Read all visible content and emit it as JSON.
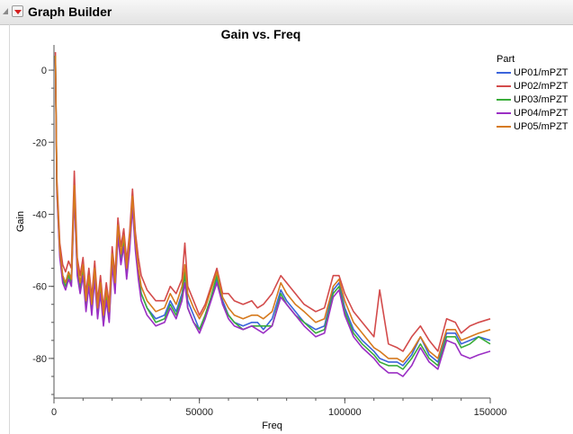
{
  "window": {
    "title": "Graph Builder"
  },
  "chart_data": {
    "type": "line",
    "title": "Gain vs. Freq",
    "xlabel": "Freq",
    "ylabel": "Gain",
    "xlim": [
      0,
      150000
    ],
    "ylim": [
      -91,
      7
    ],
    "x_ticks": [
      0,
      50000,
      100000,
      150000
    ],
    "y_ticks": [
      0,
      -20,
      -40,
      -60,
      -80
    ],
    "legend": {
      "title": "Part",
      "position": "right"
    },
    "grid": false,
    "x": [
      500,
      1000,
      2000,
      3000,
      4000,
      5000,
      6000,
      7000,
      8000,
      9000,
      10000,
      11000,
      12000,
      13000,
      14000,
      15000,
      16000,
      17000,
      18000,
      19000,
      20000,
      21000,
      22000,
      23000,
      24000,
      25000,
      26000,
      27000,
      28000,
      29000,
      30000,
      32000,
      35000,
      38000,
      40000,
      42000,
      44000,
      45000,
      46000,
      48000,
      50000,
      52000,
      54000,
      56000,
      58000,
      60000,
      62000,
      65000,
      68000,
      70000,
      72000,
      75000,
      78000,
      80000,
      83000,
      86000,
      90000,
      93000,
      96000,
      98000,
      100000,
      103000,
      106000,
      110000,
      112000,
      115000,
      118000,
      120000,
      123000,
      126000,
      129000,
      132000,
      135000,
      138000,
      140000,
      143000,
      146000,
      150000
    ],
    "series": [
      {
        "name": "UP01/mPZT",
        "color": "#3b64db",
        "values": [
          4,
          -32,
          -50,
          -57,
          -59,
          -56,
          -58,
          -33,
          -55,
          -60,
          -55,
          -65,
          -58,
          -66,
          -56,
          -67,
          -60,
          -69,
          -62,
          -68,
          -52,
          -60,
          -44,
          -52,
          -47,
          -56,
          -48,
          -37,
          -48,
          -56,
          -62,
          -66,
          -69,
          -68,
          -64,
          -67,
          -62,
          -57,
          -64,
          -68,
          -72,
          -68,
          -63,
          -58,
          -64,
          -68,
          -70,
          -71,
          -70,
          -70,
          -72,
          -69,
          -61,
          -64,
          -67,
          -70,
          -72,
          -71,
          -61,
          -59,
          -66,
          -72,
          -75,
          -78,
          -80,
          -81,
          -81,
          -82,
          -79,
          -74,
          -79,
          -81,
          -73,
          -73,
          -76,
          -75,
          -74,
          -75
        ]
      },
      {
        "name": "UP02/mPZT",
        "color": "#d34b4b",
        "values": [
          5,
          -30,
          -48,
          -54,
          -56,
          -53,
          -55,
          -28,
          -52,
          -57,
          -52,
          -62,
          -55,
          -63,
          -53,
          -64,
          -57,
          -66,
          -59,
          -65,
          -49,
          -57,
          -41,
          -49,
          -44,
          -53,
          -45,
          -33,
          -45,
          -52,
          -57,
          -61,
          -64,
          -64,
          -60,
          -62,
          -58,
          -48,
          -60,
          -64,
          -68,
          -65,
          -60,
          -55,
          -62,
          -62,
          -64,
          -65,
          -64,
          -66,
          -65,
          -62,
          -57,
          -59,
          -62,
          -65,
          -67,
          -66,
          -57,
          -57,
          -62,
          -67,
          -70,
          -74,
          -61,
          -76,
          -77,
          -78,
          -74,
          -71,
          -75,
          -78,
          -69,
          -70,
          -73,
          -71,
          -70,
          -69
        ]
      },
      {
        "name": "UP03/mPZT",
        "color": "#3aad3a",
        "values": [
          4,
          -33,
          -51,
          -58,
          -60,
          -57,
          -59,
          -34,
          -56,
          -61,
          -56,
          -66,
          -59,
          -67,
          -57,
          -68,
          -61,
          -70,
          -63,
          -69,
          -53,
          -61,
          -45,
          -53,
          -48,
          -57,
          -49,
          -37,
          -49,
          -57,
          -62,
          -66,
          -70,
          -69,
          -65,
          -68,
          -63,
          -56,
          -66,
          -70,
          -72,
          -68,
          -63,
          -57,
          -65,
          -68,
          -70,
          -72,
          -71,
          -71,
          -71,
          -71,
          -62,
          -65,
          -68,
          -70,
          -73,
          -72,
          -62,
          -60,
          -67,
          -73,
          -76,
          -79,
          -81,
          -82,
          -82,
          -83,
          -80,
          -76,
          -80,
          -82,
          -74,
          -74,
          -77,
          -76,
          -74,
          -76
        ]
      },
      {
        "name": "UP04/mPZT",
        "color": "#9b2fc4",
        "values": [
          3,
          -34,
          -52,
          -59,
          -61,
          -58,
          -60,
          -35,
          -57,
          -62,
          -57,
          -67,
          -60,
          -68,
          -58,
          -69,
          -62,
          -71,
          -64,
          -70,
          -54,
          -62,
          -46,
          -54,
          -49,
          -58,
          -50,
          -38,
          -50,
          -58,
          -64,
          -68,
          -71,
          -70,
          -66,
          -69,
          -64,
          -59,
          -66,
          -70,
          -73,
          -69,
          -64,
          -59,
          -65,
          -69,
          -71,
          -72,
          -71,
          -72,
          -73,
          -71,
          -63,
          -65,
          -68,
          -71,
          -74,
          -73,
          -63,
          -61,
          -68,
          -74,
          -77,
          -80,
          -82,
          -84,
          -84,
          -85,
          -82,
          -77,
          -81,
          -83,
          -75,
          -76,
          -79,
          -80,
          -79,
          -78
        ]
      },
      {
        "name": "UP05/mPZT",
        "color": "#d67a1e",
        "values": [
          4,
          -32,
          -50,
          -57,
          -59,
          -56,
          -58,
          -32,
          -54,
          -59,
          -54,
          -64,
          -57,
          -65,
          -55,
          -66,
          -59,
          -68,
          -61,
          -67,
          -51,
          -59,
          -43,
          -51,
          -46,
          -55,
          -47,
          -35,
          -47,
          -55,
          -60,
          -64,
          -67,
          -66,
          -62,
          -65,
          -60,
          -54,
          -62,
          -66,
          -69,
          -66,
          -61,
          -56,
          -63,
          -66,
          -68,
          -69,
          -68,
          -68,
          -69,
          -67,
          -59,
          -62,
          -65,
          -67,
          -70,
          -69,
          -60,
          -58,
          -64,
          -70,
          -73,
          -77,
          -78,
          -80,
          -80,
          -81,
          -78,
          -74,
          -78,
          -80,
          -72,
          -72,
          -75,
          -74,
          -73,
          -72
        ]
      }
    ]
  }
}
